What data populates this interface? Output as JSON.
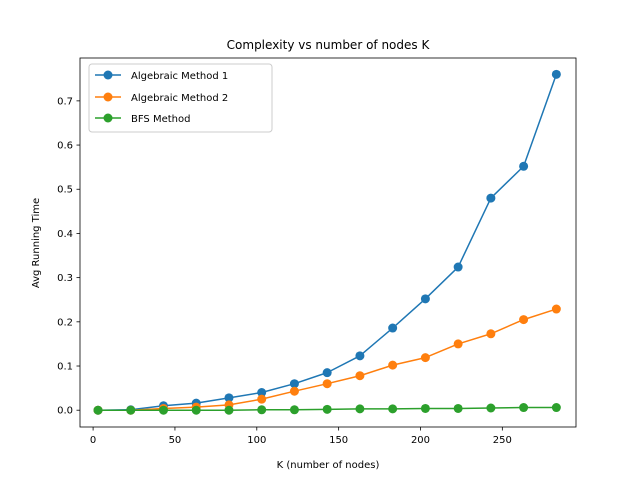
{
  "chart_data": {
    "type": "line",
    "title": "Complexity vs number of nodes K",
    "xlabel": "K (number of nodes)",
    "ylabel": "Avg Running Time",
    "xlim": [
      -8,
      295
    ],
    "ylim": [
      -0.038,
      0.797
    ],
    "xticks": [
      0,
      50,
      100,
      150,
      200,
      250
    ],
    "xtick_labels": [
      "0",
      "50",
      "100",
      "150",
      "200",
      "250"
    ],
    "yticks": [
      0.0,
      0.1,
      0.2,
      0.3,
      0.4,
      0.5,
      0.6,
      0.7
    ],
    "ytick_labels": [
      "0.0",
      "0.1",
      "0.2",
      "0.3",
      "0.4",
      "0.5",
      "0.6",
      "0.7"
    ],
    "grid": false,
    "legend_position": "upper-left",
    "x": [
      3,
      23,
      43,
      63,
      83,
      103,
      123,
      143,
      163,
      183,
      203,
      223,
      243,
      263,
      283
    ],
    "series": [
      {
        "name": "Algebraic Method 1",
        "color": "#1f77b4",
        "marker": "circle",
        "values": [
          0.0,
          0.001,
          0.01,
          0.016,
          0.028,
          0.04,
          0.06,
          0.085,
          0.123,
          0.186,
          0.252,
          0.324,
          0.48,
          0.552,
          0.76
        ]
      },
      {
        "name": "Algebraic Method 2",
        "color": "#ff7f0e",
        "marker": "circle",
        "values": [
          0.0,
          0.0,
          0.004,
          0.007,
          0.012,
          0.025,
          0.043,
          0.06,
          0.078,
          0.102,
          0.119,
          0.15,
          0.173,
          0.205,
          0.229
        ]
      },
      {
        "name": "BFS Method",
        "color": "#2ca02c",
        "marker": "circle",
        "values": [
          0.0,
          0.0,
          0.0,
          0.0,
          0.0,
          0.001,
          0.001,
          0.002,
          0.003,
          0.003,
          0.004,
          0.004,
          0.005,
          0.006,
          0.006
        ]
      }
    ]
  }
}
